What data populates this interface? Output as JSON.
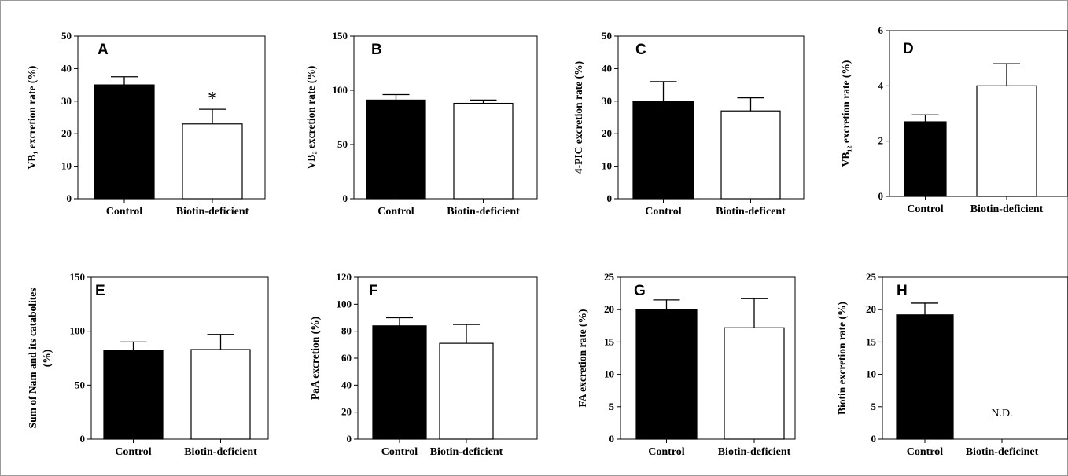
{
  "colors": {
    "control_fill": "#000000",
    "deficient_fill": "#ffffff",
    "stroke": "#000000"
  },
  "chart_data": [
    {
      "type": "bar",
      "panel": "A",
      "ylabel": "VB₁ excretion rate (%)",
      "ylim": [
        0,
        50
      ],
      "yticks": [
        0,
        10,
        20,
        30,
        40,
        50
      ],
      "categories": [
        "Control",
        "Biotin-deficient"
      ],
      "values": [
        35,
        23
      ],
      "errors": [
        2.5,
        4.5
      ],
      "annotation": "*"
    },
    {
      "type": "bar",
      "panel": "B",
      "ylabel": "VB₂ excretion rate (%)",
      "ylim": [
        0,
        150
      ],
      "yticks": [
        0,
        50,
        100,
        150
      ],
      "categories": [
        "Control",
        "Biotin-deficient"
      ],
      "values": [
        91,
        88
      ],
      "errors": [
        5,
        3
      ]
    },
    {
      "type": "bar",
      "panel": "C",
      "ylabel": "4-PIC excretion rate (%)",
      "ylim": [
        0,
        50
      ],
      "yticks": [
        0,
        10,
        20,
        30,
        40,
        50
      ],
      "categories": [
        "Control",
        "Biotin-deficent"
      ],
      "values": [
        30,
        27
      ],
      "errors": [
        6,
        4
      ]
    },
    {
      "type": "bar",
      "panel": "D",
      "ylabel": "VB₁₂ excretion rate (%)",
      "ylim": [
        0,
        6
      ],
      "yticks": [
        0,
        2,
        4,
        6
      ],
      "categories": [
        "Control",
        "Biotin-deficient"
      ],
      "values": [
        2.7,
        4.0
      ],
      "errors": [
        0.25,
        0.8
      ]
    },
    {
      "type": "bar",
      "panel": "E",
      "ylabel": "Sum of Nam and its catabolites",
      "ylabel2": "(%)",
      "ylim": [
        0,
        150
      ],
      "yticks": [
        0,
        50,
        100,
        150
      ],
      "categories": [
        "Control",
        "Biotin-deficient"
      ],
      "values": [
        82,
        83
      ],
      "errors": [
        8,
        14
      ]
    },
    {
      "type": "bar",
      "panel": "F",
      "ylabel": "PaA excretion (%)",
      "ylim": [
        0,
        120
      ],
      "yticks": [
        0,
        20,
        40,
        60,
        80,
        100,
        120
      ],
      "categories": [
        "Control",
        "Biotin-deficient"
      ],
      "values": [
        84,
        71
      ],
      "errors": [
        6,
        14
      ]
    },
    {
      "type": "bar",
      "panel": "G",
      "ylabel": "FA excretion rate (%)",
      "ylim": [
        0,
        25
      ],
      "yticks": [
        0,
        5,
        10,
        15,
        20,
        25
      ],
      "categories": [
        "Control",
        "Biotin-deficient"
      ],
      "values": [
        20,
        17.2
      ],
      "errors": [
        1.5,
        4.5
      ]
    },
    {
      "type": "bar",
      "panel": "H",
      "ylabel": "Biotin excretion rate (%)",
      "ylim": [
        0,
        25
      ],
      "yticks": [
        0,
        5,
        10,
        15,
        20,
        25
      ],
      "categories": [
        "Control",
        "Biotin-deficinet"
      ],
      "values": [
        19.2,
        null
      ],
      "errors": [
        1.8,
        null
      ],
      "annotation": "N.D."
    }
  ]
}
